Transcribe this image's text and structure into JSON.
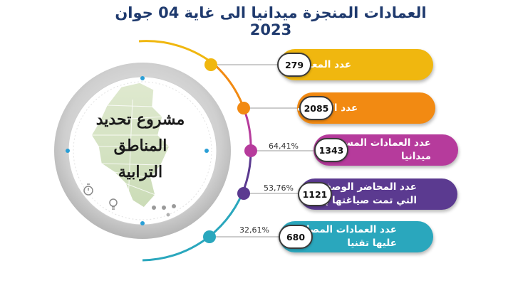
{
  "title": "العمادات المنجزة ميدانيا الى غاية 04 جوان 2023",
  "project": {
    "line1": "مشروع تحديد",
    "line2": "المناطق",
    "line3": "الترابية"
  },
  "stats": [
    {
      "label": "عدد المعتمديات",
      "value": "279",
      "percent": "",
      "color": "#f0b70f"
    },
    {
      "label": "عدد العمادات",
      "value": "2085",
      "percent": "",
      "color": "#f28a12"
    },
    {
      "label": "عدد العمادات المستكملة ميدانيا",
      "value": "1343",
      "percent": "64,41%",
      "color": "#b63b9c"
    },
    {
      "label": "عدد المحاضر الوصفية التي تمت صياغتها إداريا",
      "value": "1121",
      "percent": "53,76%",
      "color": "#5b3a90"
    },
    {
      "label": "عدد العمادات المصادق عليها تقنيا",
      "value": "680",
      "percent": "32,61%",
      "color": "#2aa7bd"
    }
  ],
  "icons": [
    "stopwatch-icon",
    "lightbulb-icon"
  ]
}
